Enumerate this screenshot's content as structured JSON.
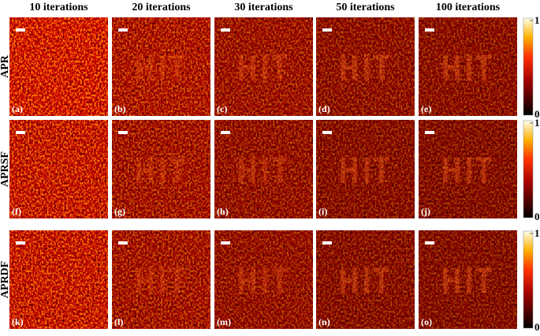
{
  "figure": {
    "columns": [
      "10 iterations",
      "20 iterations",
      "30 iterations",
      "50 iterations",
      "100 iterations"
    ],
    "rows": [
      {
        "label": "APR",
        "panels": [
          "(a)",
          "(b)",
          "(c)",
          "(d)",
          "(e)"
        ]
      },
      {
        "label": "APRSF",
        "panels": [
          "(f)",
          "(g)",
          "(h)",
          "(i)",
          "(j)"
        ]
      },
      {
        "label": "APRDF",
        "panels": [
          "(k)",
          "(l)",
          "(m)",
          "(n)",
          "(o)"
        ]
      }
    ],
    "colorbar": {
      "ticks": [
        0,
        1
      ]
    }
  }
}
